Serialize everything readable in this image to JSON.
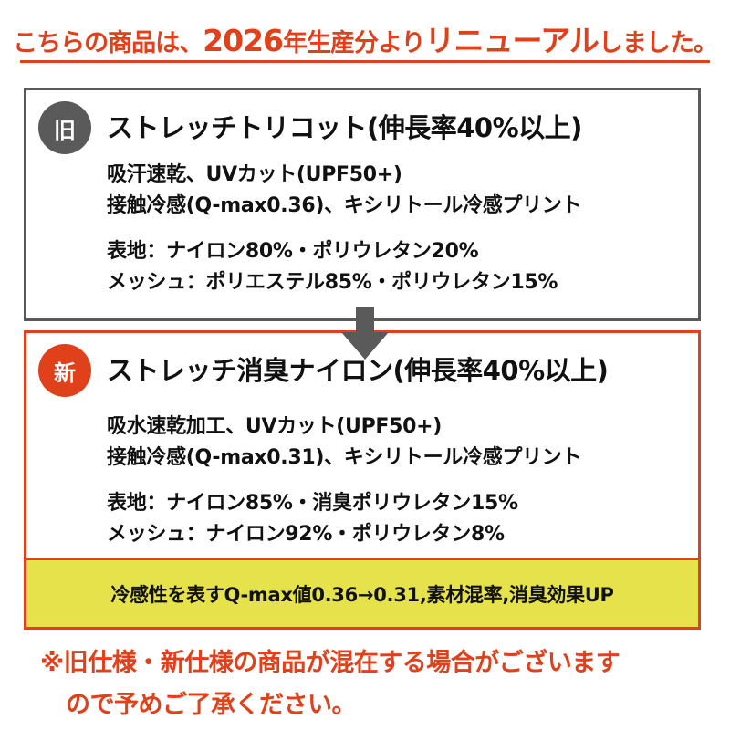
{
  "headline": {
    "part1": "こちらの商品は、",
    "part2": "2026",
    "part3": "年生産分より",
    "part4": "リニューアル",
    "part5": "しました。"
  },
  "old_spec": {
    "badge": "旧",
    "title": "ストレッチトリコット(伸長率40%以上)",
    "lines": [
      "吸汗速乾、UVカット(UPF50+)",
      "接触冷感(Q-max0.36)、キシリトール冷感プリント",
      "表地：ナイロン80%・ポリウレタン20%",
      "メッシュ：ポリエステル85%・ポリウレタン15%"
    ]
  },
  "new_spec": {
    "badge": "新",
    "title": "ストレッチ消臭ナイロン(伸長率40%以上)",
    "lines": [
      "吸水速乾加工、UVカット(UPF50+)",
      "接触冷感(Q-max0.31)、キシリトール冷感プリント",
      "表地：ナイロン85%・消臭ポリウレタン15%",
      "メッシュ：ナイロン92%・ポリウレタン8%"
    ],
    "summary": "冷感性を表すQ-max値0.36→0.31,素材混率,消臭効果UP"
  },
  "note": {
    "line1": "※旧仕様・新仕様の商品が混在する場合がございます",
    "line2": "ので予めご了承ください。"
  },
  "colors": {
    "accent_red": "#e0401a",
    "old_gray": "#5a5a5a",
    "highlight_yellow": "#e6e24c"
  },
  "icons": {
    "transition": "arrow-down-icon"
  }
}
